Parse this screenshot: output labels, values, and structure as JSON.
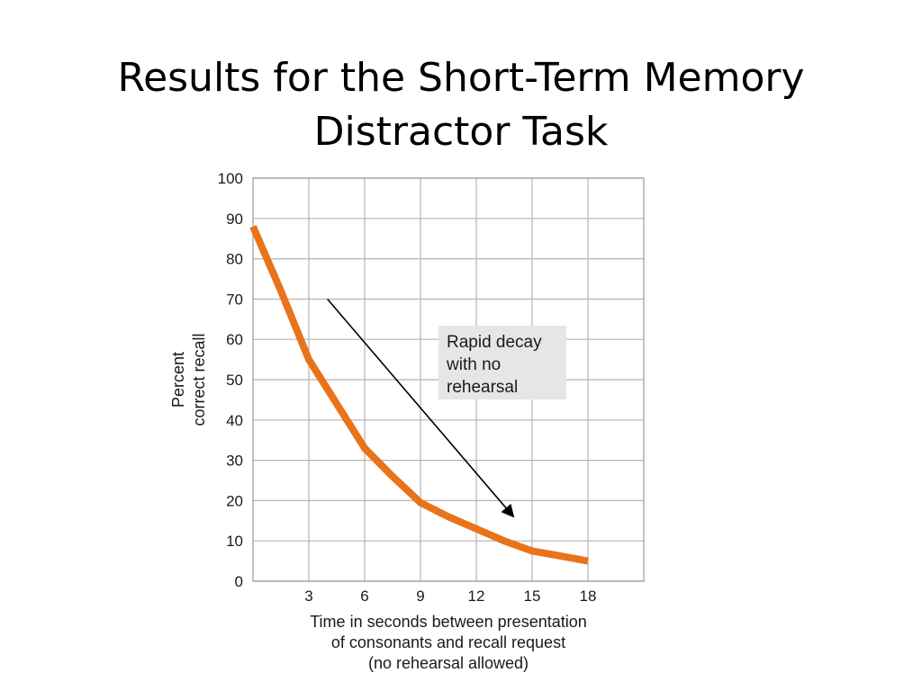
{
  "slide": {
    "title_lines": [
      "Results for the Short-Term Memory",
      "Distractor Task"
    ]
  },
  "chart_data": {
    "type": "line",
    "xlabel_lines": [
      "Time in seconds between presentation",
      "of consonants and recall request",
      "(no rehearsal allowed)"
    ],
    "ylabel_lines": [
      "Percent",
      "correct recall"
    ],
    "xlim": [
      0,
      21
    ],
    "ylim": [
      0,
      100
    ],
    "xticks": [
      3,
      6,
      9,
      12,
      15,
      18
    ],
    "yticks": [
      0,
      10,
      20,
      30,
      40,
      50,
      60,
      70,
      80,
      90,
      100
    ],
    "grid": true,
    "series": [
      {
        "color": "#e8731a",
        "x": [
          0,
          1.5,
          3,
          4.5,
          6,
          7.5,
          9,
          10.5,
          12,
          13.5,
          15,
          16.5,
          18
        ],
        "y": [
          88,
          72,
          55,
          44,
          33,
          26,
          19.5,
          16,
          13,
          10,
          7.5,
          6.3,
          5
        ]
      }
    ],
    "annotations": [
      {
        "text_lines": [
          "Rapid decay",
          "with no",
          "rehearsal"
        ],
        "box_color": "#e6e6e6"
      }
    ],
    "arrow": {
      "from": [
        4,
        70
      ],
      "to": [
        14,
        16
      ],
      "color": "#000000"
    }
  }
}
